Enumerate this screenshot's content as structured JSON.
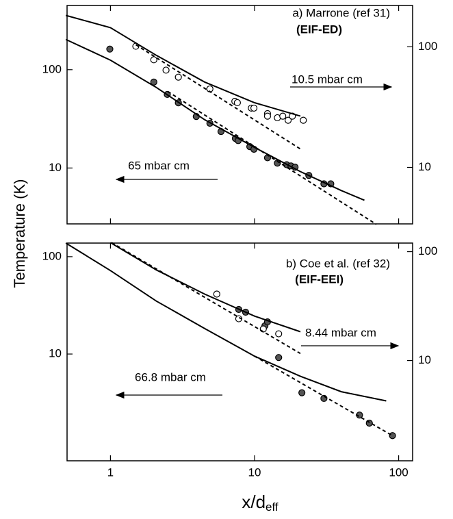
{
  "chart_data": [
    {
      "type": "scatter",
      "log_x": true,
      "log_y": true,
      "xlim": [
        0.5,
        125
      ],
      "xticks": [
        1,
        10,
        100
      ],
      "xtick_labels_shown": false,
      "ylim": [
        2.7,
        450
      ],
      "yticks": [
        10,
        100
      ],
      "y2lim": [
        3.4,
        220
      ],
      "y2ticks": [
        10,
        100
      ],
      "ylabel": "Temperature (K)",
      "annotations": [
        {
          "text": "a) Marrone (ref 31)"
        },
        {
          "text": "(EIF-ED)"
        },
        {
          "text": "10.5 mbar cm",
          "arrow": "right"
        },
        {
          "text": "65 mbar cm",
          "arrow": "left"
        }
      ],
      "series": [
        {
          "marker": "filled",
          "color": "#555555",
          "x": [
            0.99,
            2.0,
            2.48,
            2.96,
            3.94,
            4.9,
            5.85,
            7.36,
            7.7,
            9.27,
            9.9,
            12.3,
            14.4,
            16.7,
            17.9,
            19.1,
            23.8,
            30.3,
            33.8
          ],
          "values": [
            162,
            74.8,
            56,
            46,
            33.4,
            28.5,
            23.5,
            20,
            19,
            16.5,
            15.5,
            12.7,
            11.2,
            10.8,
            10.5,
            10.2,
            8.4,
            6.9,
            6.9
          ]
        },
        {
          "marker": "open",
          "axis": "y2",
          "color": "#000000",
          "x": [
            1.5,
            2.0,
            2.43,
            2.96,
            4.9,
            7.3,
            7.6,
            9.5,
            9.9,
            12.3,
            12.3,
            14.4,
            15.7,
            17.1,
            18.3,
            21.8
          ],
          "values": [
            101,
            78,
            64,
            56,
            44.7,
            35.3,
            34.4,
            31,
            31,
            27.9,
            26.6,
            25.8,
            26.6,
            24.6,
            26.6,
            24.6
          ]
        },
        {
          "line": "solid",
          "color": "#000000",
          "x": [
            0.49,
            1,
            2.08,
            4.5,
            10,
            20.8,
            40,
            57.8
          ],
          "values": [
            203,
            125,
            66,
            31,
            16.2,
            9.2,
            5.9,
            4.7
          ]
        },
        {
          "line": "dashed",
          "color": "#000000",
          "x": [
            2.5,
            70
          ],
          "values": [
            60,
            2.67
          ]
        },
        {
          "line": "solid",
          "axis": "y2",
          "color": "#000000",
          "x": [
            0.49,
            1,
            2.08,
            4.5,
            10,
            20.8
          ],
          "values": [
            182,
            144,
            85,
            51,
            34.4,
            26.6
          ]
        },
        {
          "line": "dashed",
          "axis": "y2",
          "color": "#000000",
          "x": [
            1.5,
            20.8
          ],
          "values": [
            104,
            14.2
          ]
        }
      ]
    },
    {
      "type": "scatter",
      "log_x": true,
      "log_y": true,
      "xlim": [
        0.5,
        125
      ],
      "xticks": [
        1,
        10,
        100
      ],
      "xtick_labels_shown": true,
      "ylim": [
        0.8,
        138
      ],
      "yticks": [
        10,
        100
      ],
      "y2lim": [
        1.2,
        120
      ],
      "y2ticks": [
        10,
        100
      ],
      "xlabel": "x/d",
      "xlabel_sub": "eff",
      "annotations": [
        {
          "text": "b) Coe et al. (ref 32)"
        },
        {
          "text": "(EIF-EEI)"
        },
        {
          "text": "8.44 mbar cm",
          "arrow": "right"
        },
        {
          "text": "66.8 mbar cm",
          "arrow": "left"
        }
      ],
      "series": [
        {
          "marker": "filled",
          "color": "#555555",
          "x": [
            7.77,
            8.67,
            11.8,
            12.3,
            14.7,
            21.3,
            30.3,
            53.5,
            62.6,
            90.6
          ],
          "values": [
            28.7,
            26.9,
            19.5,
            21.4,
            9.2,
            4.0,
            3.5,
            2.36,
            1.95,
            1.45
          ]
        },
        {
          "marker": "open",
          "axis": "y2",
          "color": "#000000",
          "x": [
            5.47,
            7.77,
            11.5,
            14.7
          ],
          "values": [
            40.8,
            24.2,
            19.5,
            17.6
          ]
        },
        {
          "line": "solid",
          "color": "#000000",
          "x": [
            0.49,
            1,
            2.08,
            4.5,
            10,
            20.8,
            40,
            82
          ],
          "values": [
            138,
            72,
            35,
            18.3,
            9.5,
            5.9,
            4.1,
            3.3
          ]
        },
        {
          "line": "dashed",
          "color": "#000000",
          "x": [
            10,
            90.6
          ],
          "values": [
            9.5,
            1.45
          ]
        },
        {
          "line": "solid",
          "axis": "y2",
          "color": "#000000",
          "x": [
            1,
            2.08,
            4.5,
            10,
            20.8
          ],
          "values": [
            121,
            68,
            40.8,
            25.6,
            18.4
          ]
        },
        {
          "line": "dashed",
          "axis": "y2",
          "color": "#000000",
          "x": [
            1.02,
            20.8
          ],
          "values": [
            121,
            11.6
          ]
        }
      ]
    }
  ]
}
